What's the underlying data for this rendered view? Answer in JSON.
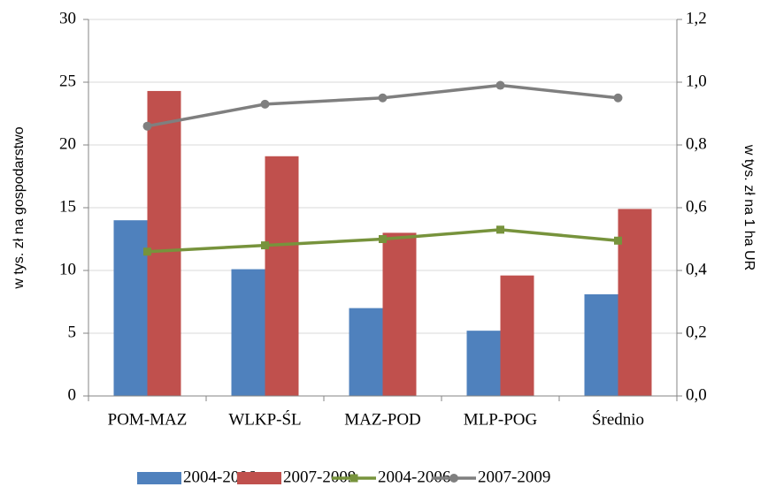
{
  "chart_data": {
    "type": "bar",
    "categories": [
      "POM-MAZ",
      "WLKP-ŚL",
      "MAZ-POD",
      "MLP-POG",
      "Średnio"
    ],
    "ylabel": "w tys. zł na gospodarstwo",
    "y2label": "w tys. zł na 1 ha UR",
    "ylim": [
      0,
      30
    ],
    "yticks": [
      0,
      5,
      10,
      15,
      20,
      25,
      30
    ],
    "y2lim": [
      0,
      1.2
    ],
    "y2ticks": [
      {
        "value": 0,
        "label": "0,0"
      },
      {
        "value": 0.2,
        "label": "0,2"
      },
      {
        "value": 0.4,
        "label": "0,4"
      },
      {
        "value": 0.6,
        "label": "0,6"
      },
      {
        "value": 0.8,
        "label": "0,8"
      },
      {
        "value": 1.0,
        "label": "1,0"
      },
      {
        "value": 1.2,
        "label": "1,2"
      }
    ],
    "grid": true,
    "legend": "bottom",
    "series": [
      {
        "name": "2004-2006",
        "type": "bar",
        "color": "#4f81bd",
        "values": [
          14,
          10.1,
          7,
          5.2,
          8.1
        ]
      },
      {
        "name": "2007-2009",
        "type": "bar",
        "color": "#c0504d",
        "values": [
          24.3,
          19.1,
          13,
          9.6,
          14.9
        ]
      },
      {
        "name": "2004-2006",
        "type": "line",
        "axis": "y2",
        "marker": "square",
        "color": "#77933c",
        "values": [
          0.46,
          0.48,
          0.5,
          0.53,
          0.495
        ]
      },
      {
        "name": "2007-2009",
        "type": "line",
        "axis": "y2",
        "marker": "circle",
        "color": "#7f7f7f",
        "values": [
          0.86,
          0.93,
          0.95,
          0.99,
          0.95
        ]
      }
    ]
  }
}
